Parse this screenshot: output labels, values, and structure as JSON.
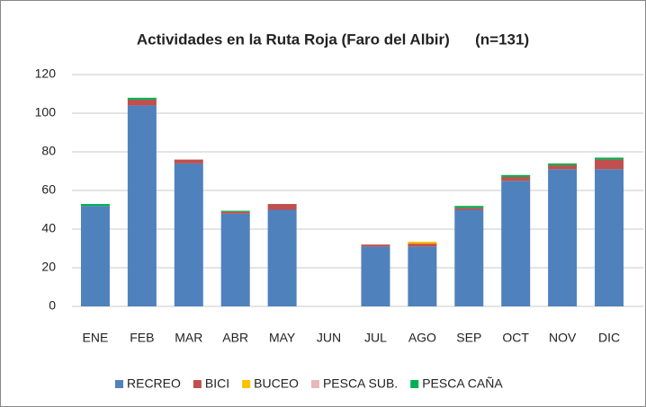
{
  "chart_data": {
    "type": "stacked_bar",
    "title": "Actividades en la Ruta Roja (Faro del Albir)      (n=131)",
    "categories": [
      "ENE",
      "FEB",
      "MAR",
      "ABR",
      "MAY",
      "JUN",
      "JUL",
      "AGO",
      "SEP",
      "OCT",
      "NOV",
      "DIC"
    ],
    "series": [
      {
        "name": "RECREO",
        "color": "#4f81bd",
        "values": [
          52,
          104,
          74,
          48,
          50,
          0,
          31,
          31,
          50,
          65,
          71,
          71
        ]
      },
      {
        "name": "BICI",
        "color": "#c0504d",
        "values": [
          0,
          3,
          2,
          1,
          3,
          0,
          1,
          1.5,
          1,
          2,
          2,
          5
        ]
      },
      {
        "name": "BUCEO",
        "color": "#ffc000",
        "values": [
          0,
          0,
          0,
          0,
          0,
          0,
          0,
          1,
          0,
          0,
          0,
          0
        ]
      },
      {
        "name": "PESCA SUB.",
        "color": "#e6b9b8",
        "values": [
          0,
          0,
          0,
          0,
          0,
          0,
          0,
          0,
          0,
          0,
          0,
          0
        ]
      },
      {
        "name": "PESCA CAÑA",
        "color": "#00b050",
        "values": [
          1,
          1,
          0,
          0.5,
          0,
          0,
          0,
          0,
          1,
          1,
          1,
          1
        ]
      }
    ],
    "ylim": [
      0,
      120
    ],
    "yticks": [
      0,
      20,
      40,
      60,
      80,
      100,
      120
    ],
    "grid": true,
    "legend": "bottom"
  }
}
